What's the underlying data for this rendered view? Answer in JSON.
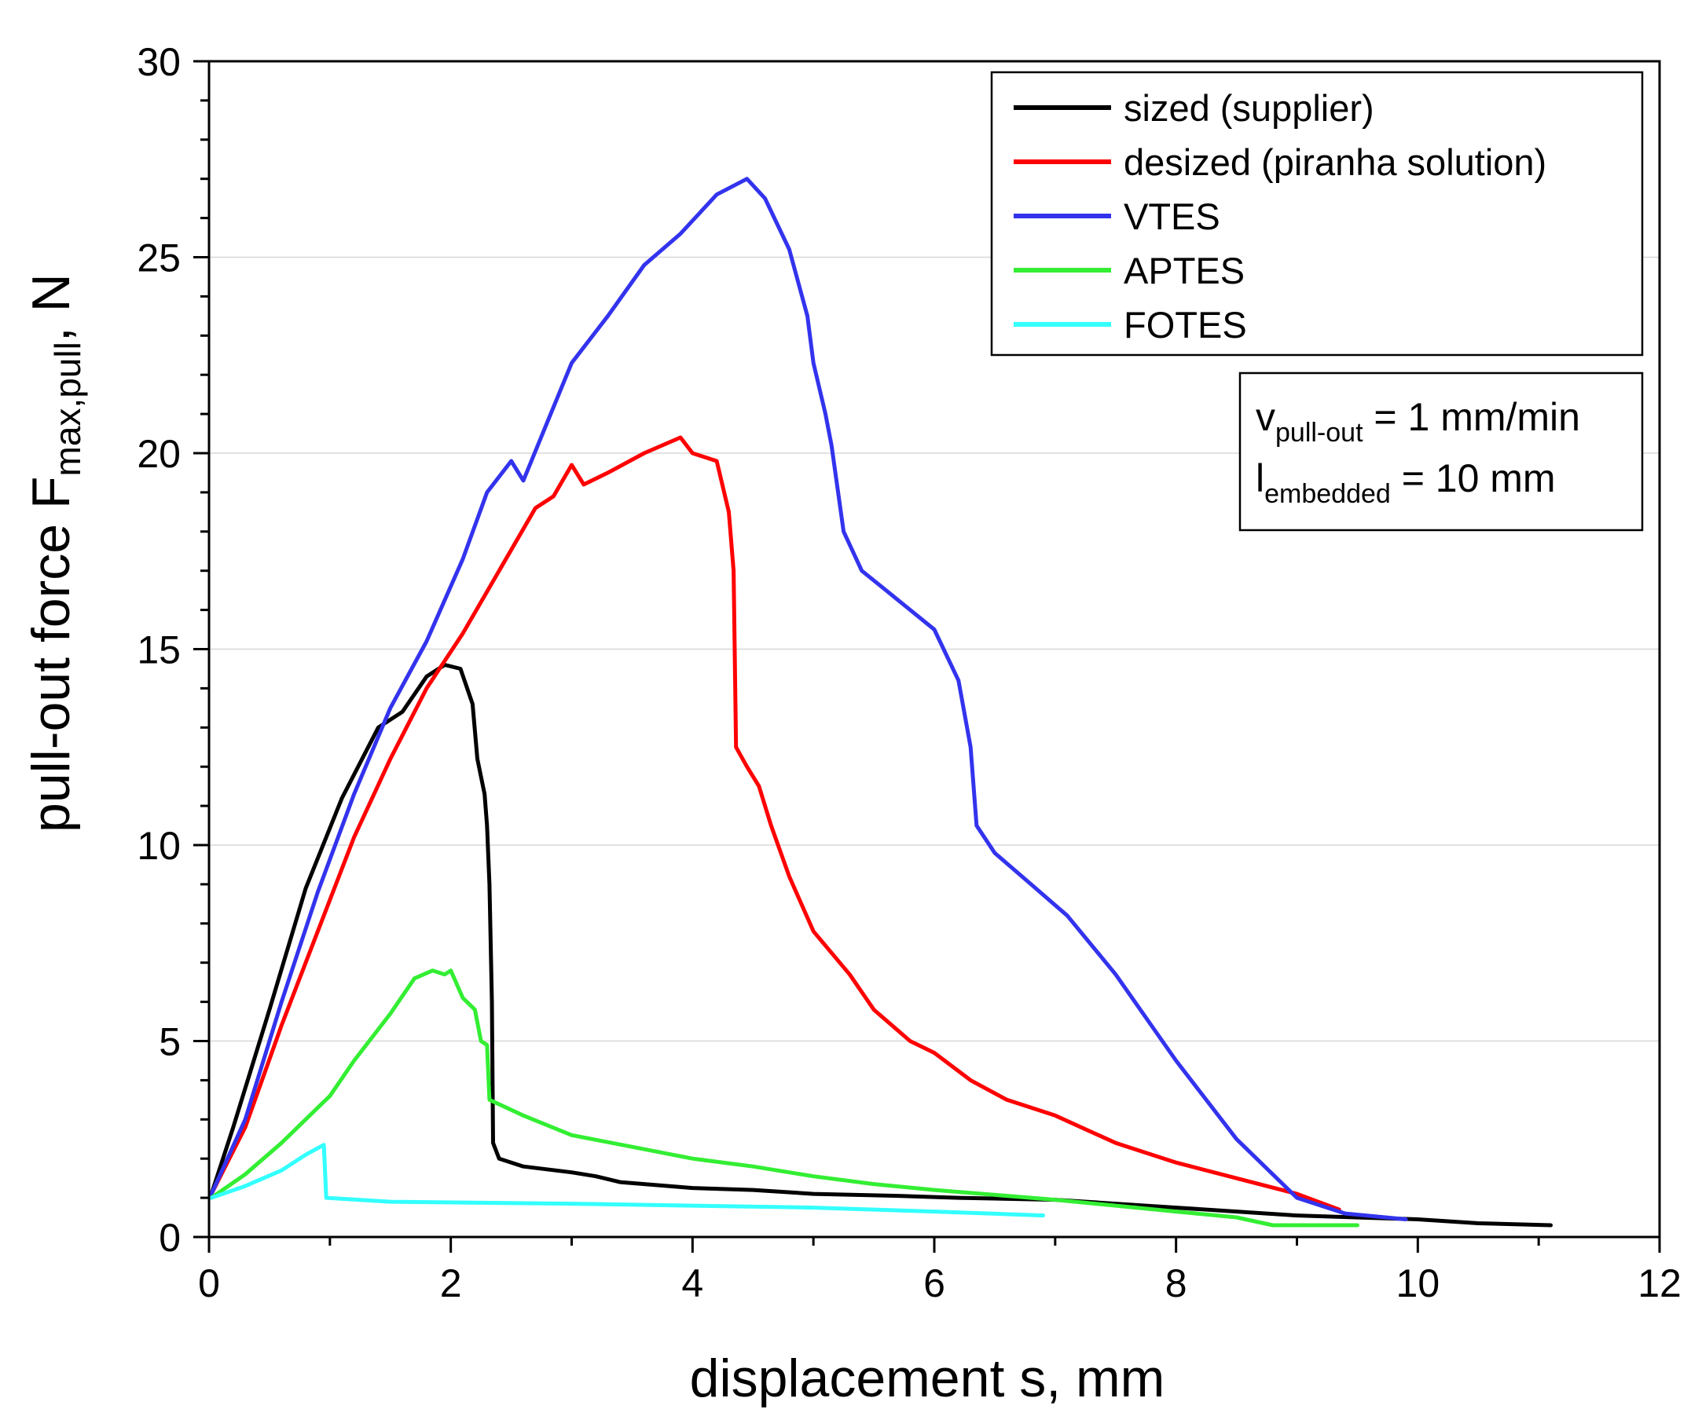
{
  "colors": {
    "sized": "#000000",
    "desized": "#ff0000",
    "vtes": "#3333ee",
    "aptes": "#33ee33",
    "fotes": "#33ffff",
    "grid": "#d8d8d8"
  },
  "chart_data": {
    "type": "line",
    "xlabel": "displacement s, mm",
    "ylabel": {
      "main": "pull-out force F",
      "sub": "max,pull",
      "unit": ", N"
    },
    "xlim": [
      0,
      12
    ],
    "ylim": [
      0,
      30
    ],
    "x_ticks": [
      0,
      2,
      4,
      6,
      8,
      10,
      12
    ],
    "y_ticks": [
      0,
      5,
      10,
      15,
      20,
      25,
      30
    ],
    "x_tick_labels": [
      "0",
      "2",
      "4",
      "6",
      "8",
      "10",
      "12"
    ],
    "y_tick_labels": [
      "0",
      "5",
      "10",
      "15",
      "20",
      "25",
      "30"
    ],
    "grid": "horizontal",
    "legend_position": "top-right",
    "annotation": {
      "line1": {
        "pre": "v",
        "sub": "pull-out",
        "post": " = 1 mm/min"
      },
      "line2": {
        "pre": "l",
        "sub": "embedded",
        "post": " = 10 mm"
      }
    },
    "series": [
      {
        "name": "sized (supplier)",
        "color_key": "sized",
        "points": [
          [
            0.02,
            1.1
          ],
          [
            0.2,
            2.8
          ],
          [
            0.5,
            5.8
          ],
          [
            0.8,
            8.9
          ],
          [
            1.1,
            11.2
          ],
          [
            1.4,
            13.0
          ],
          [
            1.6,
            13.4
          ],
          [
            1.8,
            14.3
          ],
          [
            1.95,
            14.6
          ],
          [
            2.08,
            14.5
          ],
          [
            2.18,
            13.6
          ],
          [
            2.22,
            12.2
          ],
          [
            2.28,
            11.3
          ],
          [
            2.3,
            10.5
          ],
          [
            2.32,
            9.0
          ],
          [
            2.34,
            6.0
          ],
          [
            2.35,
            2.4
          ],
          [
            2.4,
            2.0
          ],
          [
            2.6,
            1.8
          ],
          [
            3.0,
            1.65
          ],
          [
            3.2,
            1.55
          ],
          [
            3.4,
            1.4
          ],
          [
            4.0,
            1.25
          ],
          [
            4.5,
            1.2
          ],
          [
            5.0,
            1.1
          ],
          [
            5.7,
            1.05
          ],
          [
            6.2,
            1.0
          ],
          [
            7.0,
            0.95
          ],
          [
            8.0,
            0.75
          ],
          [
            9.0,
            0.55
          ],
          [
            10.0,
            0.45
          ],
          [
            10.5,
            0.35
          ],
          [
            11.1,
            0.3
          ]
        ]
      },
      {
        "name": "desized (piranha solution)",
        "color_key": "desized",
        "points": [
          [
            0.02,
            1.1
          ],
          [
            0.3,
            2.8
          ],
          [
            0.6,
            5.4
          ],
          [
            0.9,
            7.8
          ],
          [
            1.2,
            10.2
          ],
          [
            1.5,
            12.2
          ],
          [
            1.8,
            14.0
          ],
          [
            2.1,
            15.4
          ],
          [
            2.4,
            17.0
          ],
          [
            2.7,
            18.6
          ],
          [
            2.85,
            18.9
          ],
          [
            3.0,
            19.7
          ],
          [
            3.1,
            19.2
          ],
          [
            3.3,
            19.5
          ],
          [
            3.6,
            20.0
          ],
          [
            3.9,
            20.4
          ],
          [
            4.0,
            20.0
          ],
          [
            4.2,
            19.8
          ],
          [
            4.3,
            18.5
          ],
          [
            4.34,
            17.0
          ],
          [
            4.36,
            12.5
          ],
          [
            4.45,
            12.0
          ],
          [
            4.55,
            11.5
          ],
          [
            4.65,
            10.5
          ],
          [
            4.8,
            9.2
          ],
          [
            5.0,
            7.8
          ],
          [
            5.3,
            6.7
          ],
          [
            5.5,
            5.8
          ],
          [
            5.8,
            5.0
          ],
          [
            6.0,
            4.7
          ],
          [
            6.3,
            4.0
          ],
          [
            6.6,
            3.5
          ],
          [
            7.0,
            3.1
          ],
          [
            7.5,
            2.4
          ],
          [
            8.0,
            1.9
          ],
          [
            8.5,
            1.5
          ],
          [
            9.0,
            1.1
          ],
          [
            9.35,
            0.7
          ]
        ]
      },
      {
        "name": "VTES",
        "color_key": "vtes",
        "points": [
          [
            0.02,
            1.1
          ],
          [
            0.3,
            3.0
          ],
          [
            0.6,
            6.0
          ],
          [
            0.9,
            8.8
          ],
          [
            1.2,
            11.3
          ],
          [
            1.5,
            13.5
          ],
          [
            1.8,
            15.2
          ],
          [
            2.1,
            17.3
          ],
          [
            2.3,
            19.0
          ],
          [
            2.5,
            19.8
          ],
          [
            2.6,
            19.3
          ],
          [
            2.8,
            20.8
          ],
          [
            3.0,
            22.3
          ],
          [
            3.3,
            23.5
          ],
          [
            3.6,
            24.8
          ],
          [
            3.9,
            25.6
          ],
          [
            4.2,
            26.6
          ],
          [
            4.45,
            27.0
          ],
          [
            4.6,
            26.5
          ],
          [
            4.8,
            25.2
          ],
          [
            4.95,
            23.5
          ],
          [
            5.0,
            22.3
          ],
          [
            5.1,
            21.0
          ],
          [
            5.15,
            20.2
          ],
          [
            5.25,
            18.0
          ],
          [
            5.4,
            17.0
          ],
          [
            5.6,
            16.5
          ],
          [
            6.0,
            15.5
          ],
          [
            6.2,
            14.2
          ],
          [
            6.3,
            12.5
          ],
          [
            6.35,
            10.5
          ],
          [
            6.5,
            9.8
          ],
          [
            6.8,
            9.0
          ],
          [
            7.1,
            8.2
          ],
          [
            7.5,
            6.7
          ],
          [
            8.0,
            4.5
          ],
          [
            8.5,
            2.5
          ],
          [
            9.0,
            1.0
          ],
          [
            9.4,
            0.6
          ],
          [
            9.9,
            0.45
          ]
        ]
      },
      {
        "name": "APTES",
        "color_key": "aptes",
        "points": [
          [
            0.02,
            1.0
          ],
          [
            0.3,
            1.6
          ],
          [
            0.6,
            2.4
          ],
          [
            0.9,
            3.3
          ],
          [
            1.0,
            3.6
          ],
          [
            1.2,
            4.5
          ],
          [
            1.5,
            5.7
          ],
          [
            1.7,
            6.6
          ],
          [
            1.85,
            6.8
          ],
          [
            1.95,
            6.7
          ],
          [
            2.0,
            6.8
          ],
          [
            2.1,
            6.1
          ],
          [
            2.2,
            5.8
          ],
          [
            2.25,
            5.0
          ],
          [
            2.3,
            4.9
          ],
          [
            2.32,
            3.5
          ],
          [
            2.6,
            3.1
          ],
          [
            3.0,
            2.6
          ],
          [
            3.5,
            2.3
          ],
          [
            4.0,
            2.0
          ],
          [
            4.5,
            1.8
          ],
          [
            5.0,
            1.55
          ],
          [
            5.5,
            1.35
          ],
          [
            6.0,
            1.2
          ],
          [
            7.0,
            0.95
          ],
          [
            8.0,
            0.65
          ],
          [
            8.5,
            0.5
          ],
          [
            8.8,
            0.3
          ],
          [
            9.5,
            0.3
          ]
        ]
      },
      {
        "name": "FOTES",
        "color_key": "fotes",
        "points": [
          [
            0.02,
            1.0
          ],
          [
            0.3,
            1.3
          ],
          [
            0.6,
            1.7
          ],
          [
            0.8,
            2.1
          ],
          [
            0.95,
            2.35
          ],
          [
            0.97,
            1.0
          ],
          [
            1.5,
            0.9
          ],
          [
            3.0,
            0.85
          ],
          [
            4.0,
            0.8
          ],
          [
            5.0,
            0.75
          ],
          [
            6.0,
            0.65
          ],
          [
            6.9,
            0.55
          ]
        ]
      }
    ]
  }
}
